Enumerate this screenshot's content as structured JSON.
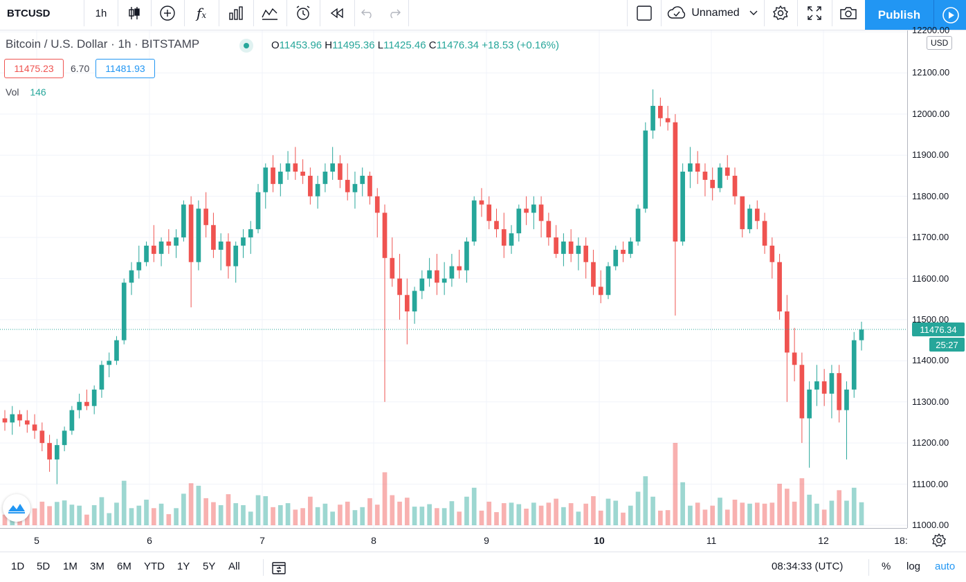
{
  "toolbar": {
    "symbol": "BTCUSD",
    "interval": "1h",
    "layout_name": "Unnamed",
    "publish_label": "Publish",
    "icons": [
      "candles-icon",
      "add-indicator-icon",
      "fx-icon",
      "compare-icon",
      "chart-type-icon",
      "alert-icon",
      "replay-icon",
      "undo-icon",
      "redo-icon",
      "layout-square-icon",
      "cloud-icon",
      "chevron-down-icon",
      "settings-icon",
      "fullscreen-icon",
      "camera-icon",
      "play-icon"
    ]
  },
  "legend": {
    "title": "Bitcoin / U.S. Dollar · 1h · BITSTAMP",
    "open_label": "O",
    "open": "11453.96",
    "high_label": "H",
    "high": "11495.36",
    "low_label": "L",
    "low": "11425.46",
    "close_label": "C",
    "close": "11476.34",
    "change": "+18.53 (+0.16%)",
    "bid": "11475.23",
    "spread": "6.70",
    "ask": "11481.93",
    "vol_label": "Vol",
    "vol_value": "146"
  },
  "price_scale": {
    "currency": "USD",
    "labels": [
      "12200.00",
      "12100.00",
      "12000.00",
      "11900.00",
      "11800.00",
      "11700.00",
      "11600.00",
      "11500.00",
      "11400.00",
      "11300.00",
      "11200.00",
      "11100.00",
      "11000.00"
    ],
    "last_price": "11476.34",
    "countdown": "25:27"
  },
  "time_scale": {
    "labels": [
      "5",
      "6",
      "7",
      "8",
      "9",
      "10",
      "11",
      "12",
      "18:"
    ]
  },
  "bottom_bar": {
    "ranges": [
      "1D",
      "5D",
      "1M",
      "3M",
      "6M",
      "YTD",
      "1Y",
      "5Y",
      "All"
    ],
    "clock": "08:34:33 (UTC)",
    "percent": "%",
    "log": "log",
    "auto": "auto"
  },
  "colors": {
    "up": "#26a69a",
    "down": "#ef5350",
    "accent": "#2196f3"
  },
  "chart_data": {
    "type": "candlestick",
    "interval": "1h",
    "y_range": [
      11000,
      12200
    ],
    "bars": [
      [
        11260,
        11280,
        11230,
        11250
      ],
      [
        11250,
        11290,
        11220,
        11270
      ],
      [
        11270,
        11280,
        11240,
        11255
      ],
      [
        11255,
        11280,
        11225,
        11245
      ],
      [
        11245,
        11270,
        11210,
        11230
      ],
      [
        11230,
        11250,
        11180,
        11200
      ],
      [
        11200,
        11220,
        11130,
        11160
      ],
      [
        11160,
        11210,
        11100,
        11195
      ],
      [
        11195,
        11240,
        11180,
        11230
      ],
      [
        11230,
        11290,
        11220,
        11280
      ],
      [
        11280,
        11320,
        11260,
        11300
      ],
      [
        11300,
        11330,
        11280,
        11290
      ],
      [
        11290,
        11340,
        11270,
        11330
      ],
      [
        11330,
        11400,
        11310,
        11390
      ],
      [
        11390,
        11420,
        11360,
        11400
      ],
      [
        11400,
        11460,
        11390,
        11450
      ],
      [
        11450,
        11600,
        11440,
        11590
      ],
      [
        11590,
        11640,
        11560,
        11620
      ],
      [
        11620,
        11680,
        11600,
        11640
      ],
      [
        11640,
        11690,
        11630,
        11680
      ],
      [
        11680,
        11730,
        11640,
        11660
      ],
      [
        11660,
        11700,
        11630,
        11690
      ],
      [
        11690,
        11720,
        11660,
        11680
      ],
      [
        11680,
        11720,
        11650,
        11700
      ],
      [
        11700,
        11790,
        11690,
        11780
      ],
      [
        11780,
        11800,
        11530,
        11640
      ],
      [
        11640,
        11790,
        11620,
        11770
      ],
      [
        11770,
        11810,
        11700,
        11730
      ],
      [
        11730,
        11760,
        11650,
        11670
      ],
      [
        11670,
        11710,
        11620,
        11690
      ],
      [
        11690,
        11710,
        11600,
        11630
      ],
      [
        11630,
        11690,
        11590,
        11680
      ],
      [
        11680,
        11720,
        11650,
        11700
      ],
      [
        11700,
        11740,
        11660,
        11720
      ],
      [
        11720,
        11830,
        11710,
        11810
      ],
      [
        11810,
        11880,
        11770,
        11870
      ],
      [
        11870,
        11900,
        11810,
        11830
      ],
      [
        11830,
        11880,
        11800,
        11860
      ],
      [
        11860,
        11910,
        11840,
        11880
      ],
      [
        11880,
        11920,
        11840,
        11860
      ],
      [
        11860,
        11890,
        11830,
        11850
      ],
      [
        11850,
        11870,
        11780,
        11800
      ],
      [
        11800,
        11850,
        11770,
        11830
      ],
      [
        11830,
        11880,
        11810,
        11860
      ],
      [
        11860,
        11920,
        11840,
        11880
      ],
      [
        11880,
        11900,
        11820,
        11840
      ],
      [
        11840,
        11880,
        11790,
        11810
      ],
      [
        11810,
        11860,
        11770,
        11830
      ],
      [
        11830,
        11870,
        11800,
        11850
      ],
      [
        11850,
        11860,
        11780,
        11800
      ],
      [
        11800,
        11820,
        11700,
        11760
      ],
      [
        11760,
        11780,
        11300,
        11650
      ],
      [
        11650,
        11700,
        11580,
        11600
      ],
      [
        11600,
        11660,
        11500,
        11560
      ],
      [
        11560,
        11600,
        11440,
        11520
      ],
      [
        11520,
        11580,
        11490,
        11570
      ],
      [
        11570,
        11620,
        11550,
        11600
      ],
      [
        11600,
        11650,
        11580,
        11620
      ],
      [
        11620,
        11660,
        11560,
        11590
      ],
      [
        11590,
        11640,
        11560,
        11600
      ],
      [
        11600,
        11660,
        11580,
        11630
      ],
      [
        11630,
        11670,
        11600,
        11620
      ],
      [
        11620,
        11700,
        11590,
        11690
      ],
      [
        11690,
        11800,
        11680,
        11790
      ],
      [
        11790,
        11820,
        11750,
        11780
      ],
      [
        11780,
        11800,
        11720,
        11740
      ],
      [
        11740,
        11770,
        11700,
        11720
      ],
      [
        11720,
        11760,
        11650,
        11680
      ],
      [
        11680,
        11730,
        11660,
        11710
      ],
      [
        11710,
        11780,
        11690,
        11770
      ],
      [
        11770,
        11800,
        11730,
        11760
      ],
      [
        11760,
        11800,
        11720,
        11780
      ],
      [
        11780,
        11800,
        11700,
        11740
      ],
      [
        11740,
        11760,
        11680,
        11700
      ],
      [
        11700,
        11730,
        11650,
        11660
      ],
      [
        11660,
        11710,
        11630,
        11690
      ],
      [
        11690,
        11720,
        11640,
        11660
      ],
      [
        11660,
        11700,
        11620,
        11680
      ],
      [
        11680,
        11700,
        11600,
        11640
      ],
      [
        11640,
        11670,
        11560,
        11580
      ],
      [
        11580,
        11620,
        11540,
        11560
      ],
      [
        11560,
        11640,
        11550,
        11630
      ],
      [
        11630,
        11680,
        11620,
        11670
      ],
      [
        11670,
        11690,
        11640,
        11660
      ],
      [
        11660,
        11700,
        11650,
        11690
      ],
      [
        11690,
        11780,
        11680,
        11770
      ],
      [
        11770,
        11980,
        11760,
        11960
      ],
      [
        11960,
        12060,
        11940,
        12020
      ],
      [
        12020,
        12040,
        11970,
        11990
      ],
      [
        11990,
        12020,
        11960,
        11980
      ],
      [
        11980,
        12000,
        11510,
        11690
      ],
      [
        11690,
        11880,
        11680,
        11860
      ],
      [
        11860,
        11920,
        11820,
        11880
      ],
      [
        11880,
        11910,
        11830,
        11860
      ],
      [
        11860,
        11880,
        11800,
        11840
      ],
      [
        11840,
        11870,
        11790,
        11820
      ],
      [
        11820,
        11880,
        11810,
        11870
      ],
      [
        11870,
        11900,
        11840,
        11850
      ],
      [
        11850,
        11870,
        11780,
        11800
      ],
      [
        11800,
        11780,
        11700,
        11720
      ],
      [
        11720,
        11780,
        11710,
        11770
      ],
      [
        11770,
        11790,
        11720,
        11740
      ],
      [
        11740,
        11760,
        11660,
        11680
      ],
      [
        11680,
        11700,
        11600,
        11640
      ],
      [
        11640,
        11660,
        11500,
        11520
      ],
      [
        11520,
        11560,
        11300,
        11420
      ],
      [
        11420,
        11480,
        11350,
        11390
      ],
      [
        11390,
        11420,
        11200,
        11260
      ],
      [
        11260,
        11350,
        11140,
        11330
      ],
      [
        11330,
        11390,
        11290,
        11350
      ],
      [
        11350,
        11380,
        11290,
        11320
      ],
      [
        11320,
        11390,
        11260,
        11370
      ],
      [
        11370,
        11390,
        11250,
        11280
      ],
      [
        11280,
        11350,
        11160,
        11330
      ],
      [
        11330,
        11470,
        11310,
        11450
      ],
      [
        11450,
        11495,
        11425,
        11476
      ]
    ],
    "volume_range": [
      0,
      1000
    ]
  }
}
